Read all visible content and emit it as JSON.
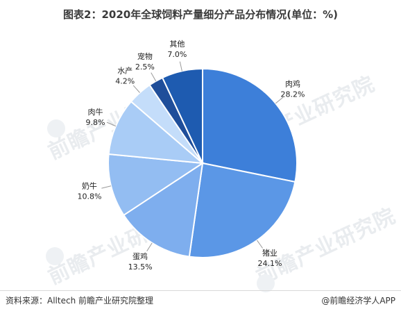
{
  "title": "图表2：2020年全球饲料产量细分产品分布情况(单位：%)",
  "source": "资料来源：Alltech 前瞻产业研究院整理",
  "credit": "@前瞻经济学人APP",
  "watermark": "前瞻产业研究院",
  "chart_data": {
    "type": "pie",
    "title": "图表2：2020年全球饲料产量细分产品分布情况(单位：%)",
    "unit": "%",
    "start_angle_deg": 0,
    "direction": "clockwise",
    "slices": [
      {
        "label": "肉鸡",
        "value": 28.2,
        "display": "28.2%",
        "color": "#3d7fd9"
      },
      {
        "label": "猪业",
        "value": 24.1,
        "display": "24.1%",
        "color": "#5b97e6"
      },
      {
        "label": "蛋鸡",
        "value": 13.5,
        "display": "13.5%",
        "color": "#7eaeee"
      },
      {
        "label": "奶牛",
        "value": 10.8,
        "display": "10.8%",
        "color": "#93bdf2"
      },
      {
        "label": "肉牛",
        "value": 9.8,
        "display": "9.8%",
        "color": "#a9ccf6"
      },
      {
        "label": "水产",
        "value": 4.2,
        "display": "4.2%",
        "color": "#c4ddfa"
      },
      {
        "label": "宠物",
        "value": 2.5,
        "display": "2.5%",
        "color": "#1f4e9a"
      },
      {
        "label": "其他",
        "value": 7.0,
        "display": "7.0%",
        "color": "#1e5bb0"
      }
    ]
  }
}
